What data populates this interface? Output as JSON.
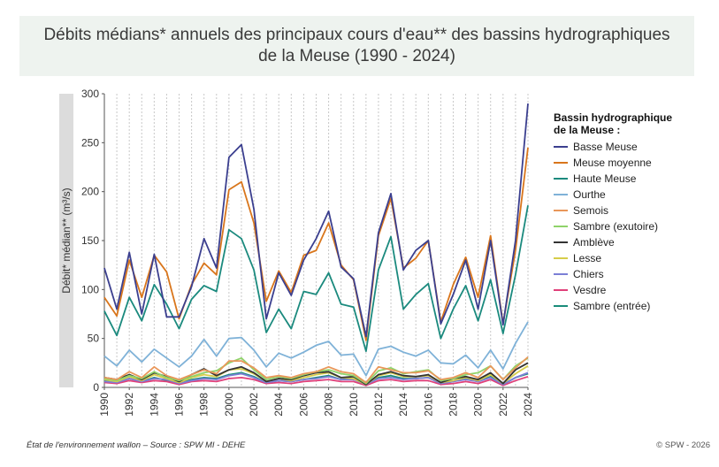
{
  "chart_data": {
    "type": "line",
    "title": "Débits médians* annuels des principaux cours d'eau** des bassins hydrographiques de la Meuse (1990 - 2024)",
    "title_lines": [
      "Débits médians* annuels des principaux cours d'eau** des bassins hydrographiques",
      "de la Meuse (1990 - 2024)"
    ],
    "xlabel": "",
    "ylabel": "Débit* médian** (m³/s)",
    "ylim": [
      0,
      300
    ],
    "yticks": [
      0,
      50,
      100,
      150,
      200,
      250,
      300
    ],
    "x": [
      1990,
      1991,
      1992,
      1993,
      1994,
      1995,
      1996,
      1997,
      1998,
      1999,
      2000,
      2001,
      2002,
      2003,
      2004,
      2005,
      2006,
      2007,
      2008,
      2009,
      2010,
      2011,
      2012,
      2013,
      2014,
      2015,
      2016,
      2017,
      2018,
      2019,
      2020,
      2021,
      2022,
      2023,
      2024
    ],
    "xticks": [
      1990,
      1992,
      1994,
      1996,
      1998,
      2000,
      2002,
      2004,
      2006,
      2008,
      2010,
      2012,
      2014,
      2016,
      2018,
      2020,
      2022,
      2024
    ],
    "grid": "vertical dashed",
    "legend_position": "right",
    "legend_title_lines": [
      "Bassin hydrographique",
      "de la Meuse :"
    ],
    "series": [
      {
        "name": "Basse Meuse",
        "color": "#3b3f8f",
        "values": [
          122,
          80,
          138,
          75,
          136,
          72,
          72,
          103,
          152,
          122,
          235,
          248,
          182,
          70,
          117,
          94,
          130,
          152,
          180,
          123,
          111,
          52,
          158,
          198,
          120,
          140,
          150,
          65,
          95,
          130,
          80,
          150,
          64,
          150,
          290
        ]
      },
      {
        "name": "Meuse moyenne",
        "color": "#d9761c",
        "values": [
          92,
          73,
          130,
          92,
          135,
          118,
          70,
          105,
          127,
          115,
          202,
          210,
          168,
          88,
          119,
          97,
          135,
          140,
          168,
          125,
          110,
          48,
          155,
          193,
          122,
          132,
          150,
          67,
          105,
          133,
          92,
          155,
          65,
          140,
          245
        ]
      },
      {
        "name": "Haute Meuse",
        "color": "#1b8a7e",
        "values": [
          78,
          53,
          92,
          68,
          105,
          85,
          60,
          90,
          104,
          98,
          161,
          152,
          120,
          56,
          80,
          60,
          98,
          95,
          117,
          85,
          82,
          37,
          120,
          154,
          80,
          95,
          106,
          50,
          80,
          104,
          68,
          110,
          55,
          115,
          186
        ]
      },
      {
        "name": "Ourthe",
        "color": "#7fb2d8",
        "values": [
          32,
          22,
          38,
          26,
          39,
          30,
          21,
          32,
          49,
          32,
          50,
          51,
          38,
          21,
          35,
          30,
          36,
          43,
          47,
          33,
          34,
          12,
          39,
          42,
          36,
          32,
          38,
          25,
          24,
          33,
          20,
          38,
          19,
          45,
          67
        ]
      },
      {
        "name": "Semois",
        "color": "#e9975a",
        "values": [
          10,
          8,
          16,
          10,
          21,
          12,
          8,
          13,
          18,
          14,
          27,
          27,
          20,
          10,
          12,
          10,
          14,
          16,
          21,
          16,
          14,
          5,
          21,
          18,
          15,
          15,
          17,
          8,
          10,
          15,
          10,
          22,
          8,
          20,
          31
        ]
      },
      {
        "name": "Sambre (exutoire)",
        "color": "#8fd36a",
        "values": [
          9,
          7,
          12,
          9,
          16,
          10,
          7,
          11,
          15,
          17,
          25,
          30,
          18,
          8,
          11,
          9,
          13,
          16,
          18,
          14,
          12,
          4,
          17,
          20,
          14,
          16,
          18,
          7,
          9,
          13,
          15,
          22,
          8,
          22,
          30
        ]
      },
      {
        "name": "Amblève",
        "color": "#333333",
        "values": [
          10,
          8,
          13,
          8,
          15,
          11,
          6,
          13,
          19,
          12,
          18,
          21,
          15,
          6,
          9,
          8,
          12,
          15,
          16,
          10,
          11,
          3,
          13,
          16,
          12,
          11,
          13,
          5,
          9,
          11,
          8,
          15,
          4,
          18,
          25
        ]
      },
      {
        "name": "Lesse",
        "color": "#d6cd4a",
        "values": [
          8,
          6,
          11,
          7,
          13,
          9,
          5,
          10,
          13,
          11,
          18,
          19,
          14,
          6,
          9,
          7,
          10,
          13,
          15,
          10,
          9,
          3,
          12,
          15,
          11,
          11,
          12,
          5,
          7,
          10,
          7,
          13,
          4,
          14,
          22
        ]
      },
      {
        "name": "Chiers",
        "color": "#7b7fd6",
        "values": [
          6,
          5,
          9,
          6,
          9,
          8,
          4,
          7,
          9,
          8,
          12,
          14,
          10,
          5,
          7,
          6,
          8,
          9,
          11,
          8,
          8,
          3,
          9,
          10,
          8,
          9,
          10,
          4,
          6,
          8,
          6,
          10,
          3,
          10,
          15
        ]
      },
      {
        "name": "Vesdre",
        "color": "#e0407a",
        "values": [
          5,
          4,
          7,
          5,
          7,
          6,
          3,
          6,
          7,
          6,
          9,
          10,
          8,
          4,
          5,
          4,
          6,
          7,
          8,
          6,
          6,
          2,
          7,
          8,
          6,
          7,
          7,
          3,
          4,
          6,
          4,
          8,
          2,
          7,
          11
        ]
      },
      {
        "name": "Sambre (entrée)",
        "color": "#1a8c7a",
        "values": [
          7,
          5,
          9,
          6,
          10,
          7,
          4,
          8,
          10,
          9,
          13,
          15,
          11,
          5,
          7,
          6,
          8,
          10,
          12,
          8,
          9,
          3,
          10,
          12,
          9,
          9,
          10,
          4,
          6,
          9,
          6,
          11,
          3,
          10,
          14
        ]
      }
    ]
  },
  "footer": {
    "source": "État de l'environnement wallon – Source : SPW MI - DEHE",
    "copyright": "© SPW - 2026"
  }
}
